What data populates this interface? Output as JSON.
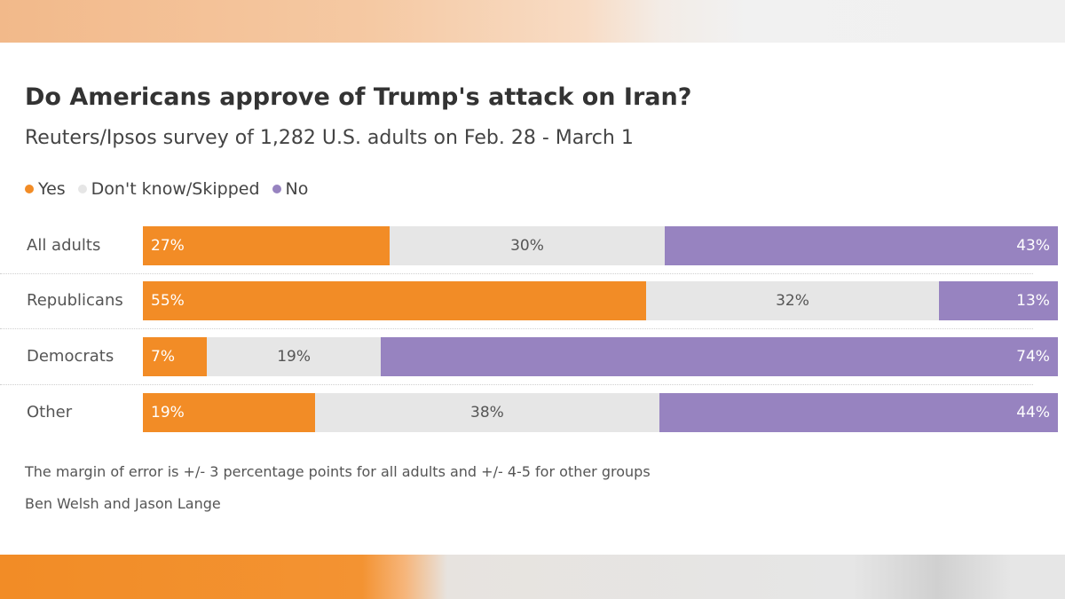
{
  "colors": {
    "yes": "#f28c26",
    "dont_know": "#e6e6e6",
    "no": "#9783c0"
  },
  "chart_data": {
    "type": "bar",
    "orientation": "horizontal",
    "stacked": true,
    "title": "Do Americans approve of Trump's attack on Iran?",
    "subtitle": "Reuters/Ipsos survey of 1,282 U.S. adults on Feb. 28 - March 1",
    "categories": [
      "All adults",
      "Republicans",
      "Democrats",
      "Other"
    ],
    "series": [
      {
        "name": "Yes",
        "color": "#f28c26",
        "values": [
          27,
          55,
          7,
          19
        ],
        "labels": [
          "27%",
          "55%",
          "7%",
          "19%"
        ]
      },
      {
        "name": "Don't know/Skipped",
        "color": "#e6e6e6",
        "values": [
          30,
          32,
          19,
          38
        ],
        "labels": [
          "30%",
          "32%",
          "19%",
          "38%"
        ]
      },
      {
        "name": "No",
        "color": "#9783c0",
        "values": [
          43,
          13,
          74,
          44
        ],
        "labels": [
          "43%",
          "13%",
          "74%",
          "44%"
        ]
      }
    ],
    "xlim": [
      0,
      100
    ],
    "legend_position": "top-left",
    "grid": false,
    "note": "The margin of error is +/- 3 percentage points for all adults and +/- 4-5 for other groups",
    "credit": "Ben Welsh and Jason Lange"
  }
}
